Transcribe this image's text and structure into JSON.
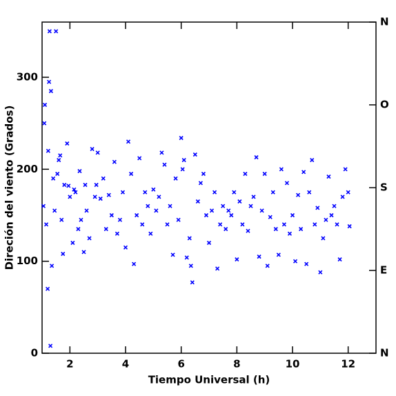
{
  "chart_data": {
    "type": "scatter",
    "xlabel": "Tiempo Universal (h)",
    "ylabel": "Direción del viento (Grados)",
    "xlim": [
      1,
      13
    ],
    "xticks": [
      2,
      4,
      6,
      8,
      10,
      12
    ],
    "ylim": [
      0,
      360
    ],
    "yticks": [
      0,
      100,
      200,
      300
    ],
    "y2lim": [
      0,
      360
    ],
    "y2ticks": [
      {
        "value": 0,
        "label": "N"
      },
      {
        "value": 90,
        "label": "E"
      },
      {
        "value": 180,
        "label": "S"
      },
      {
        "value": 270,
        "label": "O"
      },
      {
        "value": 360,
        "label": "N"
      }
    ],
    "y2color": "#0000ff",
    "series": [
      {
        "color": "#0000ff",
        "x": [
          1.05,
          1.08,
          1.1,
          1.15,
          1.2,
          1.22,
          1.25,
          1.27,
          1.3,
          1.32,
          1.35,
          1.4,
          1.45,
          1.5,
          1.55,
          1.6,
          1.65,
          1.7,
          1.75,
          1.8,
          1.9,
          1.95,
          2.0,
          2.1,
          2.15,
          2.2,
          2.3,
          2.35,
          2.4,
          2.5,
          2.55,
          2.6,
          2.7,
          2.8,
          2.9,
          2.95,
          3.0,
          3.1,
          3.2,
          3.3,
          3.4,
          3.5,
          3.6,
          3.7,
          3.8,
          3.9,
          4.0,
          4.1,
          4.2,
          4.3,
          4.4,
          4.5,
          4.6,
          4.7,
          4.8,
          4.9,
          5.0,
          5.1,
          5.2,
          5.3,
          5.4,
          5.5,
          5.6,
          5.7,
          5.8,
          5.9,
          6.0,
          6.05,
          6.1,
          6.2,
          6.3,
          6.35,
          6.4,
          6.5,
          6.6,
          6.7,
          6.8,
          6.9,
          7.0,
          7.1,
          7.2,
          7.3,
          7.4,
          7.5,
          7.6,
          7.7,
          7.8,
          7.9,
          8.0,
          8.1,
          8.2,
          8.3,
          8.4,
          8.5,
          8.6,
          8.7,
          8.8,
          8.9,
          9.0,
          9.1,
          9.2,
          9.3,
          9.4,
          9.5,
          9.6,
          9.7,
          9.8,
          9.9,
          10.0,
          10.1,
          10.2,
          10.3,
          10.4,
          10.5,
          10.6,
          10.7,
          10.8,
          10.9,
          11.0,
          11.1,
          11.2,
          11.3,
          11.4,
          11.5,
          11.6,
          11.7,
          11.8,
          11.9,
          12.0,
          12.05
        ],
        "values": [
          160,
          250,
          270,
          140,
          70,
          220,
          295,
          350,
          8,
          285,
          95,
          190,
          155,
          350,
          195,
          210,
          215,
          145,
          108,
          183,
          228,
          182,
          170,
          120,
          178,
          175,
          135,
          198,
          145,
          110,
          183,
          155,
          125,
          222,
          170,
          183,
          218,
          168,
          190,
          135,
          172,
          150,
          208,
          130,
          145,
          175,
          115,
          230,
          195,
          97,
          150,
          212,
          140,
          175,
          160,
          130,
          178,
          155,
          170,
          218,
          205,
          140,
          160,
          107,
          190,
          145,
          234,
          200,
          210,
          104,
          125,
          95,
          77,
          216,
          165,
          185,
          195,
          150,
          120,
          155,
          175,
          92,
          140,
          160,
          135,
          155,
          150,
          175,
          102,
          165,
          140,
          195,
          133,
          160,
          170,
          213,
          105,
          155,
          195,
          95,
          148,
          175,
          135,
          107,
          200,
          140,
          185,
          130,
          150,
          100,
          172,
          135,
          197,
          97,
          175,
          210,
          140,
          158,
          88,
          125,
          145,
          192,
          150,
          160,
          140,
          102,
          170,
          200,
          175,
          138
        ]
      }
    ]
  }
}
